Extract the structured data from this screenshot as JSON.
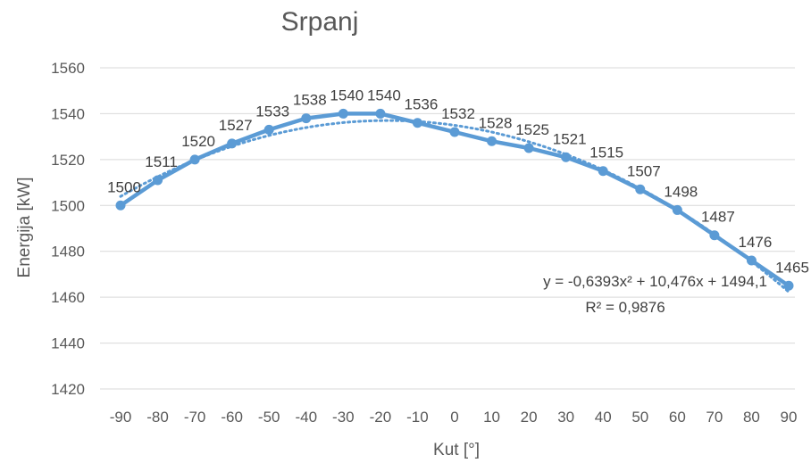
{
  "chart_data": {
    "type": "line",
    "title": "Srpanj",
    "xlabel": "Kut [°]",
    "ylabel": "Energija [kW]",
    "x": [
      -90,
      -80,
      -70,
      -60,
      -50,
      -40,
      -30,
      -20,
      -10,
      0,
      10,
      20,
      30,
      40,
      50,
      60,
      70,
      80,
      90
    ],
    "series": [
      {
        "values": [
          1500,
          1511,
          1520,
          1527,
          1533,
          1538,
          1540,
          1540,
          1536,
          1532,
          1528,
          1525,
          1521,
          1515,
          1507,
          1498,
          1487,
          1476,
          1465
        ],
        "color": "#5b9bd5"
      }
    ],
    "trendline": {
      "type": "polynomial",
      "order": 2,
      "style": "dotted",
      "equation": "y = -0,6393x² + 10,476x + 1494,1",
      "r_squared": "R² = 0,9876",
      "coefficients": {
        "a": -0.6393,
        "b": 10.476,
        "c": 1494.1
      }
    },
    "ylim": [
      1420,
      1560
    ],
    "y_ticks": [
      1420,
      1440,
      1460,
      1480,
      1500,
      1520,
      1540,
      1560
    ],
    "grid": true,
    "legend": "none",
    "data_labels": true
  }
}
